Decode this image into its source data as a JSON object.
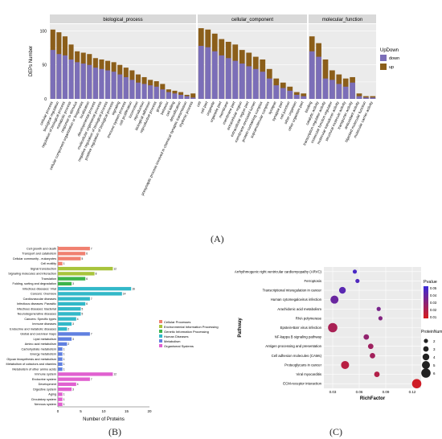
{
  "panel_labels": {
    "a": "(A)",
    "b": "(B)",
    "c": "(C)"
  },
  "colors": {
    "down": "#7B6EB8",
    "up": "#8B5E1A",
    "bg": "#EBEBEB",
    "strip": "#D9D9D9",
    "cellular_processes": "#F08070",
    "environmental": "#A8C43C",
    "genetic": "#3CB44A",
    "human_diseases": "#32B8C8",
    "metabolism": "#6080E0",
    "organismal": "#E060D0"
  },
  "chart_data": [
    {
      "type": "bar",
      "ylabel": "DEPs Number",
      "ylim": [
        0,
        110
      ],
      "yticks": [
        0,
        50,
        100
      ],
      "legend": {
        "title": "UpDown",
        "items": [
          "down",
          "up"
        ],
        "placement": "right"
      },
      "facets": [
        {
          "name": "biological_process",
          "categories": [
            "cellular process",
            "biological regulation",
            "regulation of biological process",
            "metabolic process",
            "response to stimulus",
            "cellular component organization or biogenesis",
            "localization",
            "developmental process",
            "multicellular organismal process",
            "negative regulation of biological process",
            "positive regulation of biological process",
            "signaling",
            "immune system process",
            "cell proliferation",
            "locomotion",
            "reproduction",
            "biological adhesion",
            "reproductive process",
            "growth",
            "behavior",
            "cell killing",
            "detoxification",
            "presynaptic process involved in chemical synaptic transmission",
            "rhythmic process"
          ],
          "series": [
            {
              "name": "down",
              "values": [
                72,
                66,
                64,
                58,
                54,
                52,
                50,
                46,
                44,
                42,
                40,
                36,
                32,
                28,
                24,
                22,
                20,
                18,
                14,
                10,
                8,
                6,
                4,
                2
              ]
            },
            {
              "name": "up",
              "values": [
                102,
                98,
                92,
                80,
                70,
                68,
                66,
                60,
                58,
                56,
                54,
                50,
                46,
                42,
                36,
                32,
                28,
                26,
                22,
                14,
                12,
                10,
                6,
                8
              ]
            }
          ]
        },
        {
          "name": "cellular_component",
          "categories": [
            "cell",
            "cell part",
            "organelle",
            "organelle part",
            "membrane",
            "membrane part",
            "extracellular region",
            "extracellular region part",
            "membrane-enclosed lumen",
            "protein-containing complex",
            "supramolecular complex",
            "synapse",
            "synapse part",
            "cell junction",
            "other organism",
            "other organism part"
          ],
          "series": [
            {
              "name": "down",
              "values": [
                78,
                76,
                70,
                64,
                60,
                56,
                52,
                48,
                44,
                40,
                30,
                20,
                16,
                12,
                6,
                4
              ]
            },
            {
              "name": "up",
              "values": [
                104,
                102,
                96,
                88,
                84,
                80,
                72,
                68,
                62,
                58,
                44,
                30,
                24,
                18,
                10,
                8
              ]
            }
          ]
        },
        {
          "name": "molecular_function",
          "categories": [
            "binding",
            "catalytic activity",
            "transcription regulator activity",
            "molecular function regulator",
            "molecular transducer activity",
            "structural molecule activity",
            "transporter activity",
            "antioxidant activity",
            "hijacked molecular function",
            "molecular carrier activity"
          ],
          "series": [
            {
              "name": "down",
              "values": [
                70,
                62,
                30,
                28,
                22,
                18,
                24,
                4,
                2,
                2
              ]
            },
            {
              "name": "up",
              "values": [
                92,
                82,
                58,
                42,
                36,
                30,
                32,
                8,
                4,
                4
              ]
            }
          ]
        }
      ]
    },
    {
      "type": "bar",
      "orientation": "horizontal",
      "xlabel": "Number of Proteins",
      "xlim": [
        0,
        20
      ],
      "xticks": [
        0,
        5,
        10,
        15,
        20
      ],
      "legend_items": [
        "Cellular Processes",
        "Environmental Information Processing",
        "Genetic Information Processing",
        "Human Diseases",
        "Metabolism",
        "Organismal Systems"
      ],
      "categories": [
        "Cell growth and death",
        "Transport and catabolism",
        "Cellular community - eukaryotes",
        "Cell motility",
        "Signal transduction",
        "Signaling molecules and interaction",
        "Translation",
        "Folding, sorting and degradation",
        "Infectious diseases: Viral",
        "Cancers: Overview",
        "Cardiovascular diseases",
        "Infectious diseases: Parasitic",
        "Infectious diseases: Bacterial",
        "Neurodegenerative diseases",
        "Cancers: Specific types",
        "Immune diseases",
        "Endocrine and metabolic diseases",
        "Global and overview maps",
        "Lipid metabolism",
        "Amino acid metabolism",
        "Carbohydrate metabolism",
        "Energy metabolism",
        "Glycan biosynthesis and metabolism",
        "Metabolism of cofactors and vitamins",
        "Metabolism of other amino acids",
        "Immune system",
        "Endocrine system",
        "Development",
        "Digestive system",
        "Aging",
        "Circulatory system",
        "Nervous system"
      ],
      "groups": [
        "cellular_processes",
        "cellular_processes",
        "cellular_processes",
        "cellular_processes",
        "environmental",
        "environmental",
        "genetic",
        "genetic",
        "human_diseases",
        "human_diseases",
        "human_diseases",
        "human_diseases",
        "human_diseases",
        "human_diseases",
        "human_diseases",
        "human_diseases",
        "human_diseases",
        "metabolism",
        "metabolism",
        "metabolism",
        "metabolism",
        "metabolism",
        "metabolism",
        "metabolism",
        "metabolism",
        "organismal",
        "organismal",
        "organismal",
        "organismal",
        "organismal",
        "organismal",
        "organismal"
      ],
      "values": [
        7,
        6,
        5,
        1,
        12,
        8,
        6,
        3,
        16,
        14,
        7,
        6,
        5,
        5,
        4,
        3,
        2,
        7,
        3,
        2,
        1,
        1,
        1,
        1,
        1,
        12,
        7,
        4,
        3,
        1,
        1,
        1
      ]
    },
    {
      "type": "scatter",
      "xlabel": "RichFactor",
      "ylabel": "Pathway",
      "xlim": [
        0.02,
        0.13
      ],
      "xticks": [
        "0.03",
        "0.06",
        "0.09",
        "0.12"
      ],
      "categories": [
        "Arrhythmogenic right ventricular cardiomyopathy (ARVC)",
        "Ferroptosis",
        "Transcriptional misregulation in cancer",
        "Human cytomegalovirus infection",
        "Arachidonic acid metabolism",
        "RNA polymerase",
        "Epstein-Barr virus infection",
        "NF-kappa B signaling pathway",
        "Antigen processing and presentation",
        "Cell adhesion molecules (CAMs)",
        "Proteoglycans in cancer",
        "Viral myocarditis",
        "ECM-receptor interaction"
      ],
      "points": [
        {
          "x": 0.055,
          "pvalue": 0.045,
          "count": 2
        },
        {
          "x": 0.058,
          "pvalue": 0.043,
          "count": 2
        },
        {
          "x": 0.041,
          "pvalue": 0.04,
          "count": 4
        },
        {
          "x": 0.032,
          "pvalue": 0.035,
          "count": 5
        },
        {
          "x": 0.082,
          "pvalue": 0.03,
          "count": 2
        },
        {
          "x": 0.084,
          "pvalue": 0.027,
          "count": 2
        },
        {
          "x": 0.03,
          "pvalue": 0.015,
          "count": 6
        },
        {
          "x": 0.068,
          "pvalue": 0.022,
          "count": 3
        },
        {
          "x": 0.073,
          "pvalue": 0.018,
          "count": 3
        },
        {
          "x": 0.075,
          "pvalue": 0.017,
          "count": 3
        },
        {
          "x": 0.044,
          "pvalue": 0.01,
          "count": 5
        },
        {
          "x": 0.08,
          "pvalue": 0.012,
          "count": 3
        },
        {
          "x": 0.125,
          "pvalue": 0.003,
          "count": 6
        }
      ],
      "color_legend": {
        "title": "Pvalue",
        "ticks": [
          "0.05",
          "0.04",
          "0.03",
          "0.02",
          "0.01"
        ],
        "high": "#3A2BD8",
        "low": "#D81B1B"
      },
      "size_legend": {
        "title": "ProteinNumber",
        "ticks": [
          "2",
          "3",
          "4",
          "5",
          "6"
        ]
      }
    }
  ]
}
